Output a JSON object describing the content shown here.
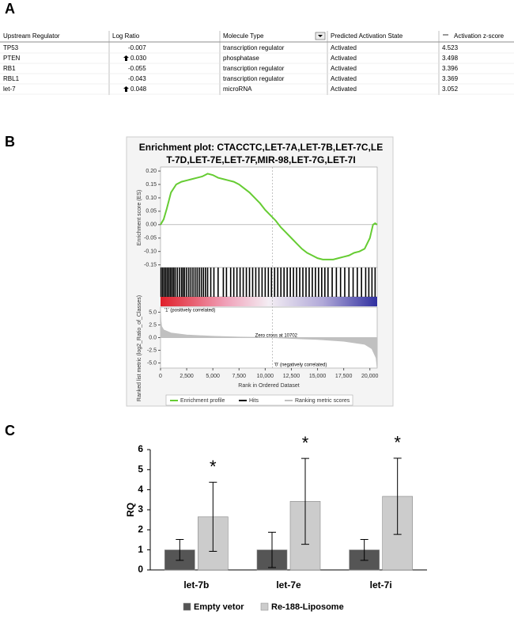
{
  "panel_labels": [
    "A",
    "B",
    "C"
  ],
  "table": {
    "columns": [
      "Upstream Regulator",
      "Log Ratio",
      "Molecule Type",
      "Predicted Activation State",
      "Activation z-score"
    ],
    "rows": [
      {
        "cells": [
          "TP53",
          "-0.007",
          "transcription regulator",
          "Activated",
          "4.523"
        ],
        "up_arrow": false
      },
      {
        "cells": [
          "PTEN",
          "0.030",
          "phosphatase",
          "Activated",
          "3.498"
        ],
        "up_arrow": true
      },
      {
        "cells": [
          "RB1",
          "-0.055",
          "transcription regulator",
          "Activated",
          "3.396"
        ],
        "up_arrow": false
      },
      {
        "cells": [
          "RBL1",
          "-0.043",
          "transcription regulator",
          "Activated",
          "3.369"
        ],
        "up_arrow": false
      },
      {
        "cells": [
          "let-7",
          "0.048",
          "microRNA",
          "Activated",
          "3.052"
        ],
        "up_arrow": true
      }
    ]
  },
  "chart_data": [
    {
      "type": "gsea",
      "title": "Enrichment plot: CTACCTC,LET-7A,LET-7B,LET-7C,LET-7D,LET-7E,LET-7F,MIR-98,LET-7G,LET-7I",
      "xlabel": "Rank in Ordered Dataset",
      "xlim": [
        0,
        20700
      ],
      "xticks": [
        0,
        {
          "value": 2500,
          "label": "2,500"
        },
        {
          "value": 5000,
          "label": "5,000"
        },
        {
          "value": 7500,
          "label": "7,500"
        },
        {
          "value": 10000,
          "label": "10,000"
        },
        {
          "value": 12500,
          "label": "12,500"
        },
        {
          "value": 15000,
          "label": "15,000"
        },
        {
          "value": 17500,
          "label": "17,500"
        },
        {
          "value": 20000,
          "label": "20,000"
        }
      ],
      "es_ylabel": "Enrichment score (ES)",
      "es_ylim": [
        -0.16,
        0.215
      ],
      "es_yticks": [
        {
          "value": 0.2,
          "label": "0.20"
        },
        {
          "value": 0.15,
          "label": "0.15"
        },
        {
          "value": 0.1,
          "label": "0.10"
        },
        {
          "value": 0.05,
          "label": "0.05"
        },
        {
          "value": 0,
          "label": "0.00"
        },
        {
          "value": -0.05,
          "label": "-0.05"
        },
        {
          "value": -0.1,
          "label": "-0.10"
        },
        {
          "value": -0.15,
          "label": "-0.15"
        }
      ],
      "metric_ylabel": "Ranked list metric (log2_Ratio_of_Classes)",
      "metric_ylim": [
        -6,
        6
      ],
      "metric_yticks": [
        {
          "value": 5,
          "label": "5.0"
        },
        {
          "value": 2.5,
          "label": "2.5"
        },
        {
          "value": 0,
          "label": "0.0"
        },
        {
          "value": -2.5,
          "label": "-2.5"
        },
        {
          "value": -5,
          "label": "-5.0"
        }
      ],
      "zero_cross": 10702,
      "annotations": [
        "'1' (positively correlated)",
        "Zero cross at 10702",
        "'0' (negatively correlated)"
      ],
      "series": [
        {
          "name": "Enrichment profile",
          "color": "#66cc33",
          "x": [
            0,
            300,
            600,
            1000,
            1500,
            2000,
            2500,
            3000,
            3500,
            4000,
            4500,
            5000,
            5500,
            6000,
            6500,
            7000,
            7500,
            8000,
            8500,
            9000,
            9500,
            10000,
            10500,
            11000,
            11500,
            12000,
            12500,
            13000,
            13500,
            14000,
            14500,
            15000,
            15500,
            16000,
            16500,
            17000,
            17500,
            18000,
            18500,
            19000,
            19500,
            20000,
            20300,
            20500,
            20700
          ],
          "values": [
            0,
            0.02,
            0.06,
            0.12,
            0.15,
            0.16,
            0.165,
            0.17,
            0.175,
            0.18,
            0.19,
            0.185,
            0.175,
            0.17,
            0.165,
            0.16,
            0.15,
            0.135,
            0.12,
            0.1,
            0.08,
            0.055,
            0.035,
            0.015,
            -0.01,
            -0.03,
            -0.05,
            -0.07,
            -0.09,
            -0.105,
            -0.115,
            -0.125,
            -0.13,
            -0.13,
            -0.13,
            -0.125,
            -0.12,
            -0.115,
            -0.105,
            -0.1,
            -0.09,
            -0.05,
            0,
            0.005,
            0
          ]
        },
        {
          "name": "Hits",
          "color": "#000000",
          "x": [
            50,
            200,
            350,
            500,
            650,
            800,
            950,
            1100,
            1250,
            1400,
            1600,
            1800,
            2000,
            2150,
            2300,
            2500,
            2700,
            2900,
            3100,
            3300,
            3500,
            3700,
            3900,
            4100,
            4300,
            4500,
            4800,
            5100,
            5500,
            6000,
            6300,
            6700,
            7000,
            7300,
            7600,
            7900,
            8200,
            8500,
            8800,
            9100,
            9400,
            9700,
            10000,
            10300,
            10600,
            10900,
            11200,
            11500,
            11800,
            12100,
            12400,
            12700,
            13000,
            13300,
            13600,
            13900,
            14200,
            14500,
            14800,
            15100,
            15400,
            15700,
            16000,
            16400,
            16800,
            17200,
            17600,
            18000,
            18400,
            18800,
            19200,
            19600,
            19900,
            20200,
            20500
          ]
        },
        {
          "name": "Ranking metric scores",
          "color": "#c0c0c0",
          "x": [
            0,
            30,
            100,
            300,
            1000,
            2500,
            5000,
            7500,
            10702,
            12500,
            15000,
            17500,
            19500,
            20200,
            20600,
            20700
          ],
          "values": [
            5,
            3.5,
            2.2,
            1.5,
            0.9,
            0.5,
            0.25,
            0.1,
            0,
            -0.15,
            -0.35,
            -0.7,
            -1.3,
            -2.2,
            -4,
            -6
          ]
        }
      ]
    },
    {
      "type": "bar",
      "ylabel": "RQ",
      "categories": [
        "let-7b",
        "let-7e",
        "let-7i"
      ],
      "ylim": [
        0,
        6
      ],
      "yticks": [
        0,
        1,
        2,
        3,
        4,
        5,
        6
      ],
      "series": [
        {
          "name": "Empty vetor",
          "color": "#555555",
          "values": [
            1,
            1,
            1
          ],
          "errors": [
            0.52,
            0.88,
            0.52
          ]
        },
        {
          "name": "Re-188-Liposome",
          "color": "#cccccc",
          "values": [
            2.65,
            3.42,
            3.67
          ],
          "errors": [
            1.72,
            2.14,
            1.9
          ]
        }
      ],
      "significance": [
        "*",
        "*",
        "*"
      ]
    }
  ]
}
